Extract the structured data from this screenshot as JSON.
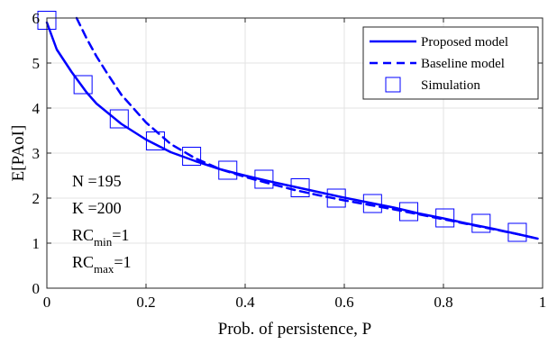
{
  "chart_data": {
    "type": "line",
    "title": "",
    "xlabel": "Prob. of persistence, P",
    "ylabel": "E[PAoI]",
    "xlim": [
      0,
      1
    ],
    "ylim": [
      0,
      6
    ],
    "xticks": [
      0,
      0.2,
      0.4,
      0.6,
      0.8,
      1
    ],
    "yticks": [
      0,
      1,
      2,
      3,
      4,
      5,
      6
    ],
    "xtick_labels": [
      "0",
      "0.2",
      "0.4",
      "0.6",
      "0.8",
      "1"
    ],
    "ytick_labels": [
      "0",
      "1",
      "2",
      "3",
      "4",
      "5",
      "6"
    ],
    "grid": true,
    "legend_position": "top-right",
    "series": [
      {
        "name": "Proposed model",
        "style": "solid",
        "color": "#0000ff",
        "x": [
          0,
          0.02,
          0.05,
          0.08,
          0.1,
          0.15,
          0.2,
          0.25,
          0.3,
          0.35,
          0.4,
          0.45,
          0.5,
          0.55,
          0.6,
          0.65,
          0.7,
          0.75,
          0.8,
          0.85,
          0.9,
          0.95,
          0.99
        ],
        "y": [
          5.9,
          5.3,
          4.8,
          4.35,
          4.1,
          3.65,
          3.3,
          3.02,
          2.82,
          2.64,
          2.5,
          2.37,
          2.25,
          2.13,
          2.01,
          1.9,
          1.79,
          1.66,
          1.55,
          1.43,
          1.32,
          1.2,
          1.1
        ]
      },
      {
        "name": "Baseline model",
        "style": "dashed",
        "color": "#0000ff",
        "x": [
          0.06,
          0.08,
          0.1,
          0.12,
          0.15,
          0.2,
          0.25,
          0.3,
          0.35,
          0.4,
          0.45,
          0.5,
          0.55,
          0.6,
          0.65,
          0.7,
          0.75,
          0.8,
          0.85,
          0.9,
          0.95,
          0.99
        ],
        "y": [
          6.0,
          5.55,
          5.15,
          4.8,
          4.3,
          3.68,
          3.2,
          2.88,
          2.64,
          2.47,
          2.32,
          2.18,
          2.06,
          1.95,
          1.85,
          1.75,
          1.64,
          1.53,
          1.42,
          1.31,
          1.2,
          1.1
        ]
      },
      {
        "name": "Simulation",
        "style": "square-markers",
        "color": "#0000ff",
        "x": [
          0,
          0.073,
          0.146,
          0.219,
          0.292,
          0.365,
          0.438,
          0.511,
          0.584,
          0.657,
          0.73,
          0.803,
          0.876,
          0.949
        ],
        "y": [
          5.95,
          4.52,
          3.76,
          3.27,
          2.93,
          2.62,
          2.42,
          2.23,
          2.0,
          1.88,
          1.7,
          1.56,
          1.44,
          1.24
        ]
      }
    ],
    "annotations": [
      {
        "base": "N =195",
        "sub": "",
        "suffix": ""
      },
      {
        "base": "K =200",
        "sub": "",
        "suffix": ""
      },
      {
        "base": "RC",
        "sub": "min",
        "suffix": "=1"
      },
      {
        "base": "RC",
        "sub": "max",
        "suffix": "=1"
      }
    ]
  }
}
